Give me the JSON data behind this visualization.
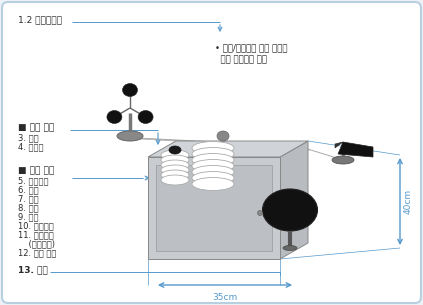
{
  "bg_color": "#eef2f6",
  "border_color": "#b8cfe0",
  "title_top_left": "1.2 풍향풍속기",
  "note_line1": "• 풍향/풍속계는 설치 장소에",
  "note_line2": "  따라 분리되는 구조",
  "external_sensor_header": "■ 외부 센서",
  "external_sensors": [
    "3. 조도",
    "4. 자외선"
  ],
  "internal_sensor_header": "■ 내부 센서",
  "internal_sensors": [
    "5. 미세먼지",
    "6. 온도",
    "7. 습도",
    "8. 소음",
    "9. 진동",
    "10. 행복지수",
    "11. 메인보드",
    "    (서브보드)",
    "12. 통신 모듈"
  ],
  "label_bottom": "13. 합계",
  "dim_width": "35cm",
  "dim_height": "40cm",
  "arrow_color": "#5599cc",
  "text_color": "#2a2a2a",
  "line_color": "#5599cc",
  "label_fontsize": 6.0,
  "header_fontsize": 6.5
}
